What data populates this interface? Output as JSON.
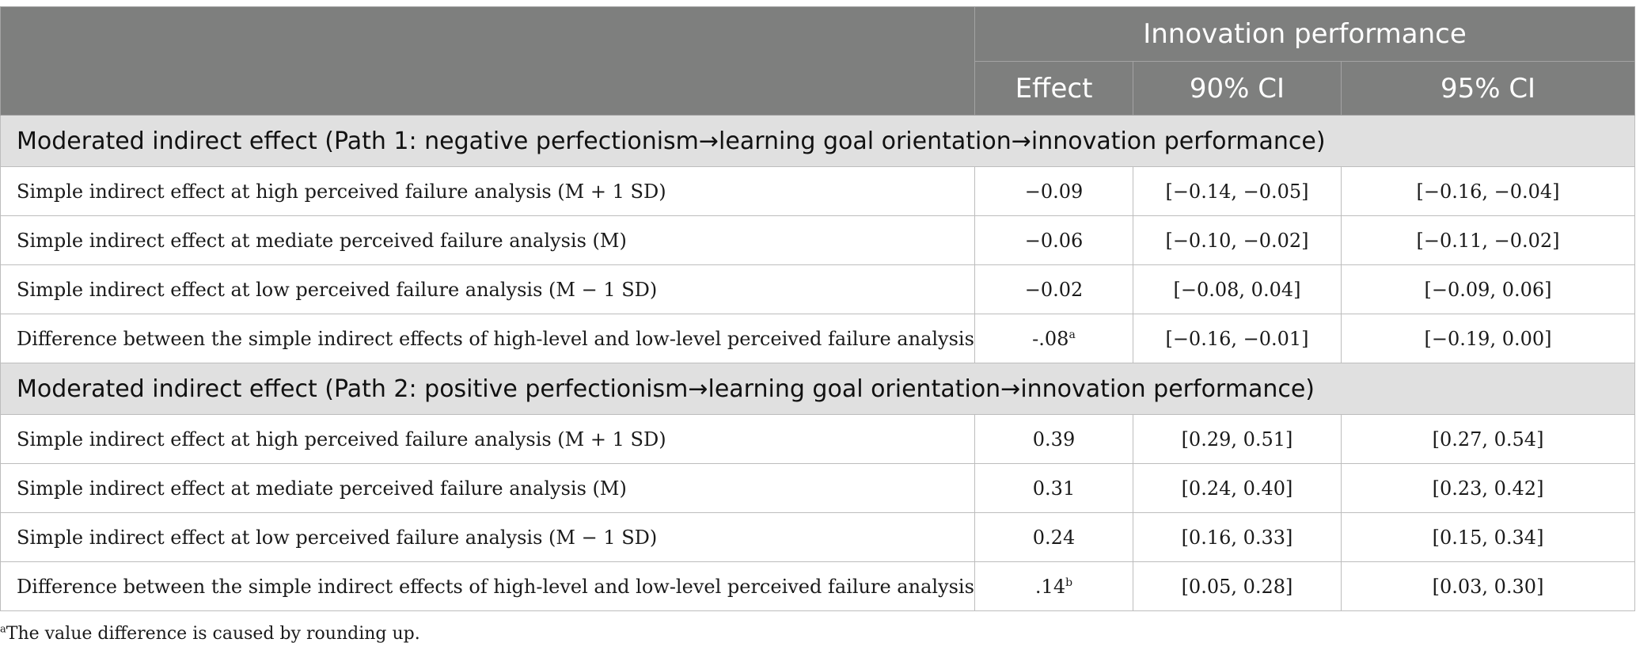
{
  "header": {
    "group_label": "Innovation performance",
    "col_effect": "Effect",
    "col_ci90": "90% CI",
    "col_ci95": "95% CI"
  },
  "sections": [
    {
      "title": "Moderated indirect effect (Path 1: negative perfectionism→learning goal orientation→innovation performance)",
      "rows": [
        {
          "label": "Simple indirect effect at high perceived failure analysis (M + 1 SD)",
          "effect": "−0.09",
          "effect_sup": "",
          "ci90": "[−0.14, −0.05]",
          "ci95": "[−0.16, −0.04]"
        },
        {
          "label": "Simple indirect effect at mediate perceived failure analysis (M)",
          "effect": "−0.06",
          "effect_sup": "",
          "ci90": "[−0.10, −0.02]",
          "ci95": "[−0.11, −0.02]"
        },
        {
          "label": "Simple indirect effect at low perceived failure analysis (M − 1 SD)",
          "effect": "−0.02",
          "effect_sup": "",
          "ci90": "[−0.08, 0.04]",
          "ci95": "[−0.09, 0.06]"
        },
        {
          "label": "Difference between the simple indirect effects of high-level and low-level perceived failure analysis",
          "effect": "-.08",
          "effect_sup": "a",
          "ci90": "[−0.16, −0.01]",
          "ci95": "[−0.19, 0.00]"
        }
      ]
    },
    {
      "title": "Moderated indirect effect (Path 2: positive perfectionism→learning goal orientation→innovation performance)",
      "rows": [
        {
          "label": "Simple indirect effect at high perceived failure analysis (M + 1 SD)",
          "effect": "0.39",
          "effect_sup": "",
          "ci90": "[0.29, 0.51]",
          "ci95": "[0.27, 0.54]"
        },
        {
          "label": "Simple indirect effect at mediate perceived failure analysis (M)",
          "effect": "0.31",
          "effect_sup": "",
          "ci90": "[0.24, 0.40]",
          "ci95": "[0.23, 0.42]"
        },
        {
          "label": "Simple indirect effect at low perceived failure analysis (M − 1 SD)",
          "effect": "0.24",
          "effect_sup": "",
          "ci90": "[0.16, 0.33]",
          "ci95": "[0.15, 0.34]"
        },
        {
          "label": "Difference between the simple indirect effects of high-level and low-level perceived failure analysis",
          "effect": ".14",
          "effect_sup": "b",
          "ci90": "[0.05, 0.28]",
          "ci95": "[0.03, 0.30]"
        }
      ]
    }
  ],
  "footnote": {
    "marker": "a",
    "text": "The value difference is caused by rounding up."
  }
}
